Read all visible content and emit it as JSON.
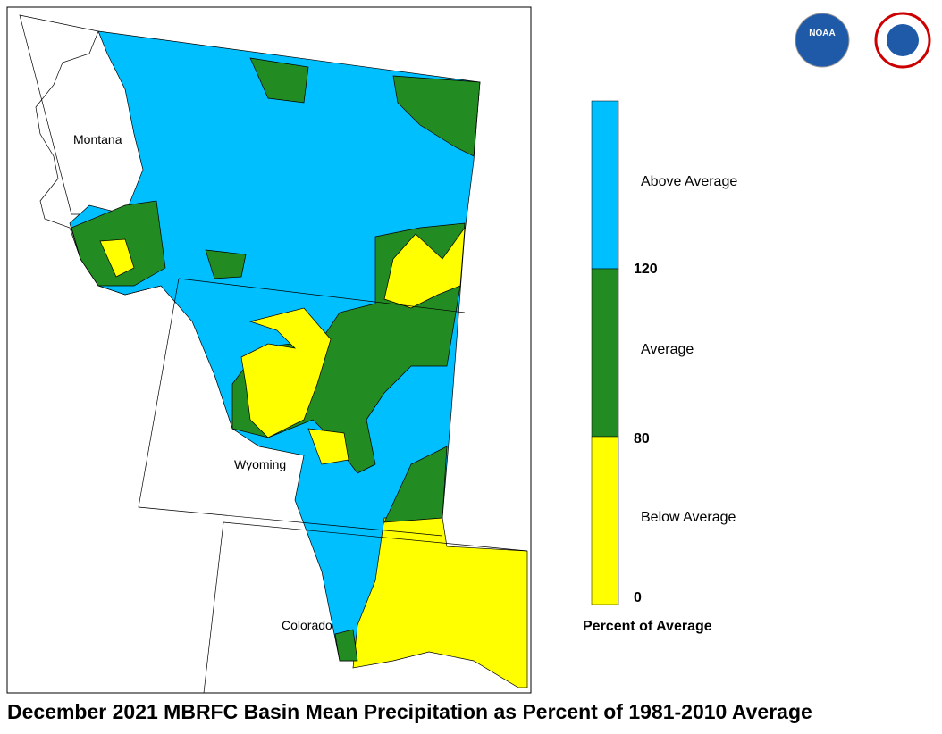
{
  "title": "December 2021 MBRFC Basin Mean Precipitation as Percent of 1981-2010 Average",
  "states": [
    "Montana",
    "Wyoming",
    "Colorado"
  ],
  "logo": "NOAA",
  "legend": {
    "title": "Percent of Average",
    "classes": [
      {
        "label": "Above Average",
        "color": "#00bfff"
      },
      {
        "label": "Average",
        "color": "#228b22"
      },
      {
        "label": "Below Average",
        "color": "#ffff00"
      }
    ],
    "breaks": [
      120,
      80,
      0
    ]
  }
}
